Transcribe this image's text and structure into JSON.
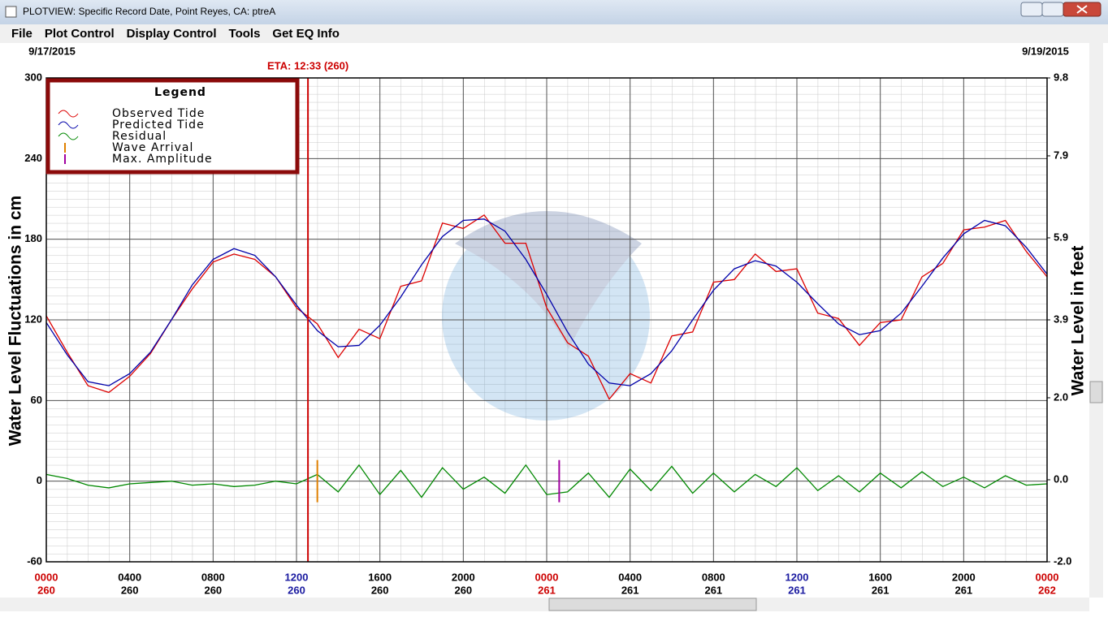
{
  "window": {
    "title": "PLOTVIEW: Specific Record Date, Point Reyes, CA: ptreA"
  },
  "menu": [
    "File",
    "Plot Control",
    "Display Control",
    "Tools",
    "Get EQ Info"
  ],
  "chart_data": {
    "type": "line",
    "start_date": "9/17/2015",
    "end_date": "9/19/2015",
    "ylabel": "Water Level Fluctuations in cm",
    "y2label": "Water Level in feet",
    "legend_title": "Legend",
    "legend": "top-left",
    "grid": true,
    "xlim": [
      0,
      48
    ],
    "xticks": [
      {
        "value": 0,
        "label": "0000",
        "day": "260"
      },
      {
        "value": 4,
        "label": "0400",
        "day": "260"
      },
      {
        "value": 8,
        "label": "0800",
        "day": "260"
      },
      {
        "value": 12,
        "label": "1200",
        "day": "260"
      },
      {
        "value": 16,
        "label": "1600",
        "day": "260"
      },
      {
        "value": 20,
        "label": "2000",
        "day": "260"
      },
      {
        "value": 24,
        "label": "0000",
        "day": "261"
      },
      {
        "value": 28,
        "label": "0400",
        "day": "261"
      },
      {
        "value": 32,
        "label": "0800",
        "day": "261"
      },
      {
        "value": 36,
        "label": "1200",
        "day": "261"
      },
      {
        "value": 40,
        "label": "1600",
        "day": "261"
      },
      {
        "value": 44,
        "label": "2000",
        "day": "261"
      },
      {
        "value": 48,
        "label": "0000",
        "day": "262"
      }
    ],
    "xtick_colors": [
      "#cc0000",
      "#000000",
      "#000000",
      "#1a1aa0",
      "#000000",
      "#000000",
      "#cc0000",
      "#000000",
      "#000000",
      "#1a1aa0",
      "#000000",
      "#000000",
      "#cc0000"
    ],
    "ylim": [
      -60,
      300
    ],
    "yticks": [
      -60,
      0,
      60,
      120,
      180,
      240,
      300
    ],
    "y2lim": [
      -2.0,
      9.8
    ],
    "y2ticks": [
      {
        "value": -2,
        "label": "-2.0"
      },
      {
        "value": 0,
        "label": "0.0"
      },
      {
        "value": 2,
        "label": "2.0"
      },
      3.9,
      5.9,
      7.9,
      9.8
    ],
    "x": [
      0,
      1,
      2,
      3,
      4,
      5,
      6,
      7,
      8,
      9,
      10,
      11,
      12,
      13,
      14,
      15,
      16,
      17,
      18,
      19,
      20,
      21,
      22,
      23,
      24,
      25,
      26,
      27,
      28,
      29,
      30,
      31,
      32,
      33,
      34,
      35,
      36,
      37,
      38,
      39,
      40,
      41,
      42,
      43,
      44,
      45,
      46,
      47,
      48
    ],
    "series": [
      {
        "name": "Observed Tide",
        "color": "#dd0000",
        "values": [
          123,
          96,
          71,
          66,
          78,
          95,
          120,
          143,
          163,
          169,
          165,
          152,
          129,
          117,
          92,
          113,
          106,
          145,
          149,
          192,
          188,
          198,
          177,
          177,
          129,
          103,
          93,
          61,
          80,
          73,
          108,
          111,
          148,
          150,
          169,
          156,
          158,
          125,
          121,
          101,
          118,
          120,
          152,
          162,
          187,
          189,
          194,
          171,
          152
        ]
      },
      {
        "name": "Predicted Tide",
        "color": "#0000aa",
        "values": [
          118,
          94,
          74,
          71,
          80,
          96,
          120,
          146,
          165,
          173,
          168,
          152,
          131,
          112,
          100,
          101,
          116,
          137,
          161,
          182,
          194,
          195,
          186,
          165,
          139,
          111,
          87,
          73,
          71,
          80,
          97,
          120,
          142,
          158,
          164,
          160,
          148,
          132,
          117,
          109,
          112,
          125,
          145,
          166,
          184,
          194,
          190,
          174,
          154
        ]
      },
      {
        "name": "Residual",
        "color": "#008800",
        "values": [
          5,
          2,
          -3,
          -5,
          -2,
          -1,
          0,
          -3,
          -2,
          -4,
          -3,
          0,
          -2,
          5,
          -8,
          12,
          -10,
          8,
          -12,
          10,
          -6,
          3,
          -9,
          12,
          -10,
          -8,
          6,
          -12,
          9,
          -7,
          11,
          -9,
          6,
          -8,
          5,
          -4,
          10,
          -7,
          4,
          -8,
          6,
          -5,
          7,
          -4,
          3,
          -5,
          4,
          -3,
          -2
        ]
      }
    ],
    "events": [
      {
        "name": "Wave Arrival",
        "color": "#e08000",
        "x": 13.0
      },
      {
        "name": "Max. Amplitude",
        "color": "#a000a0",
        "x": 24.6
      }
    ],
    "eta": {
      "label": "ETA: 12:33 (260)",
      "value": 12.55,
      "color": "#cc0000"
    }
  }
}
